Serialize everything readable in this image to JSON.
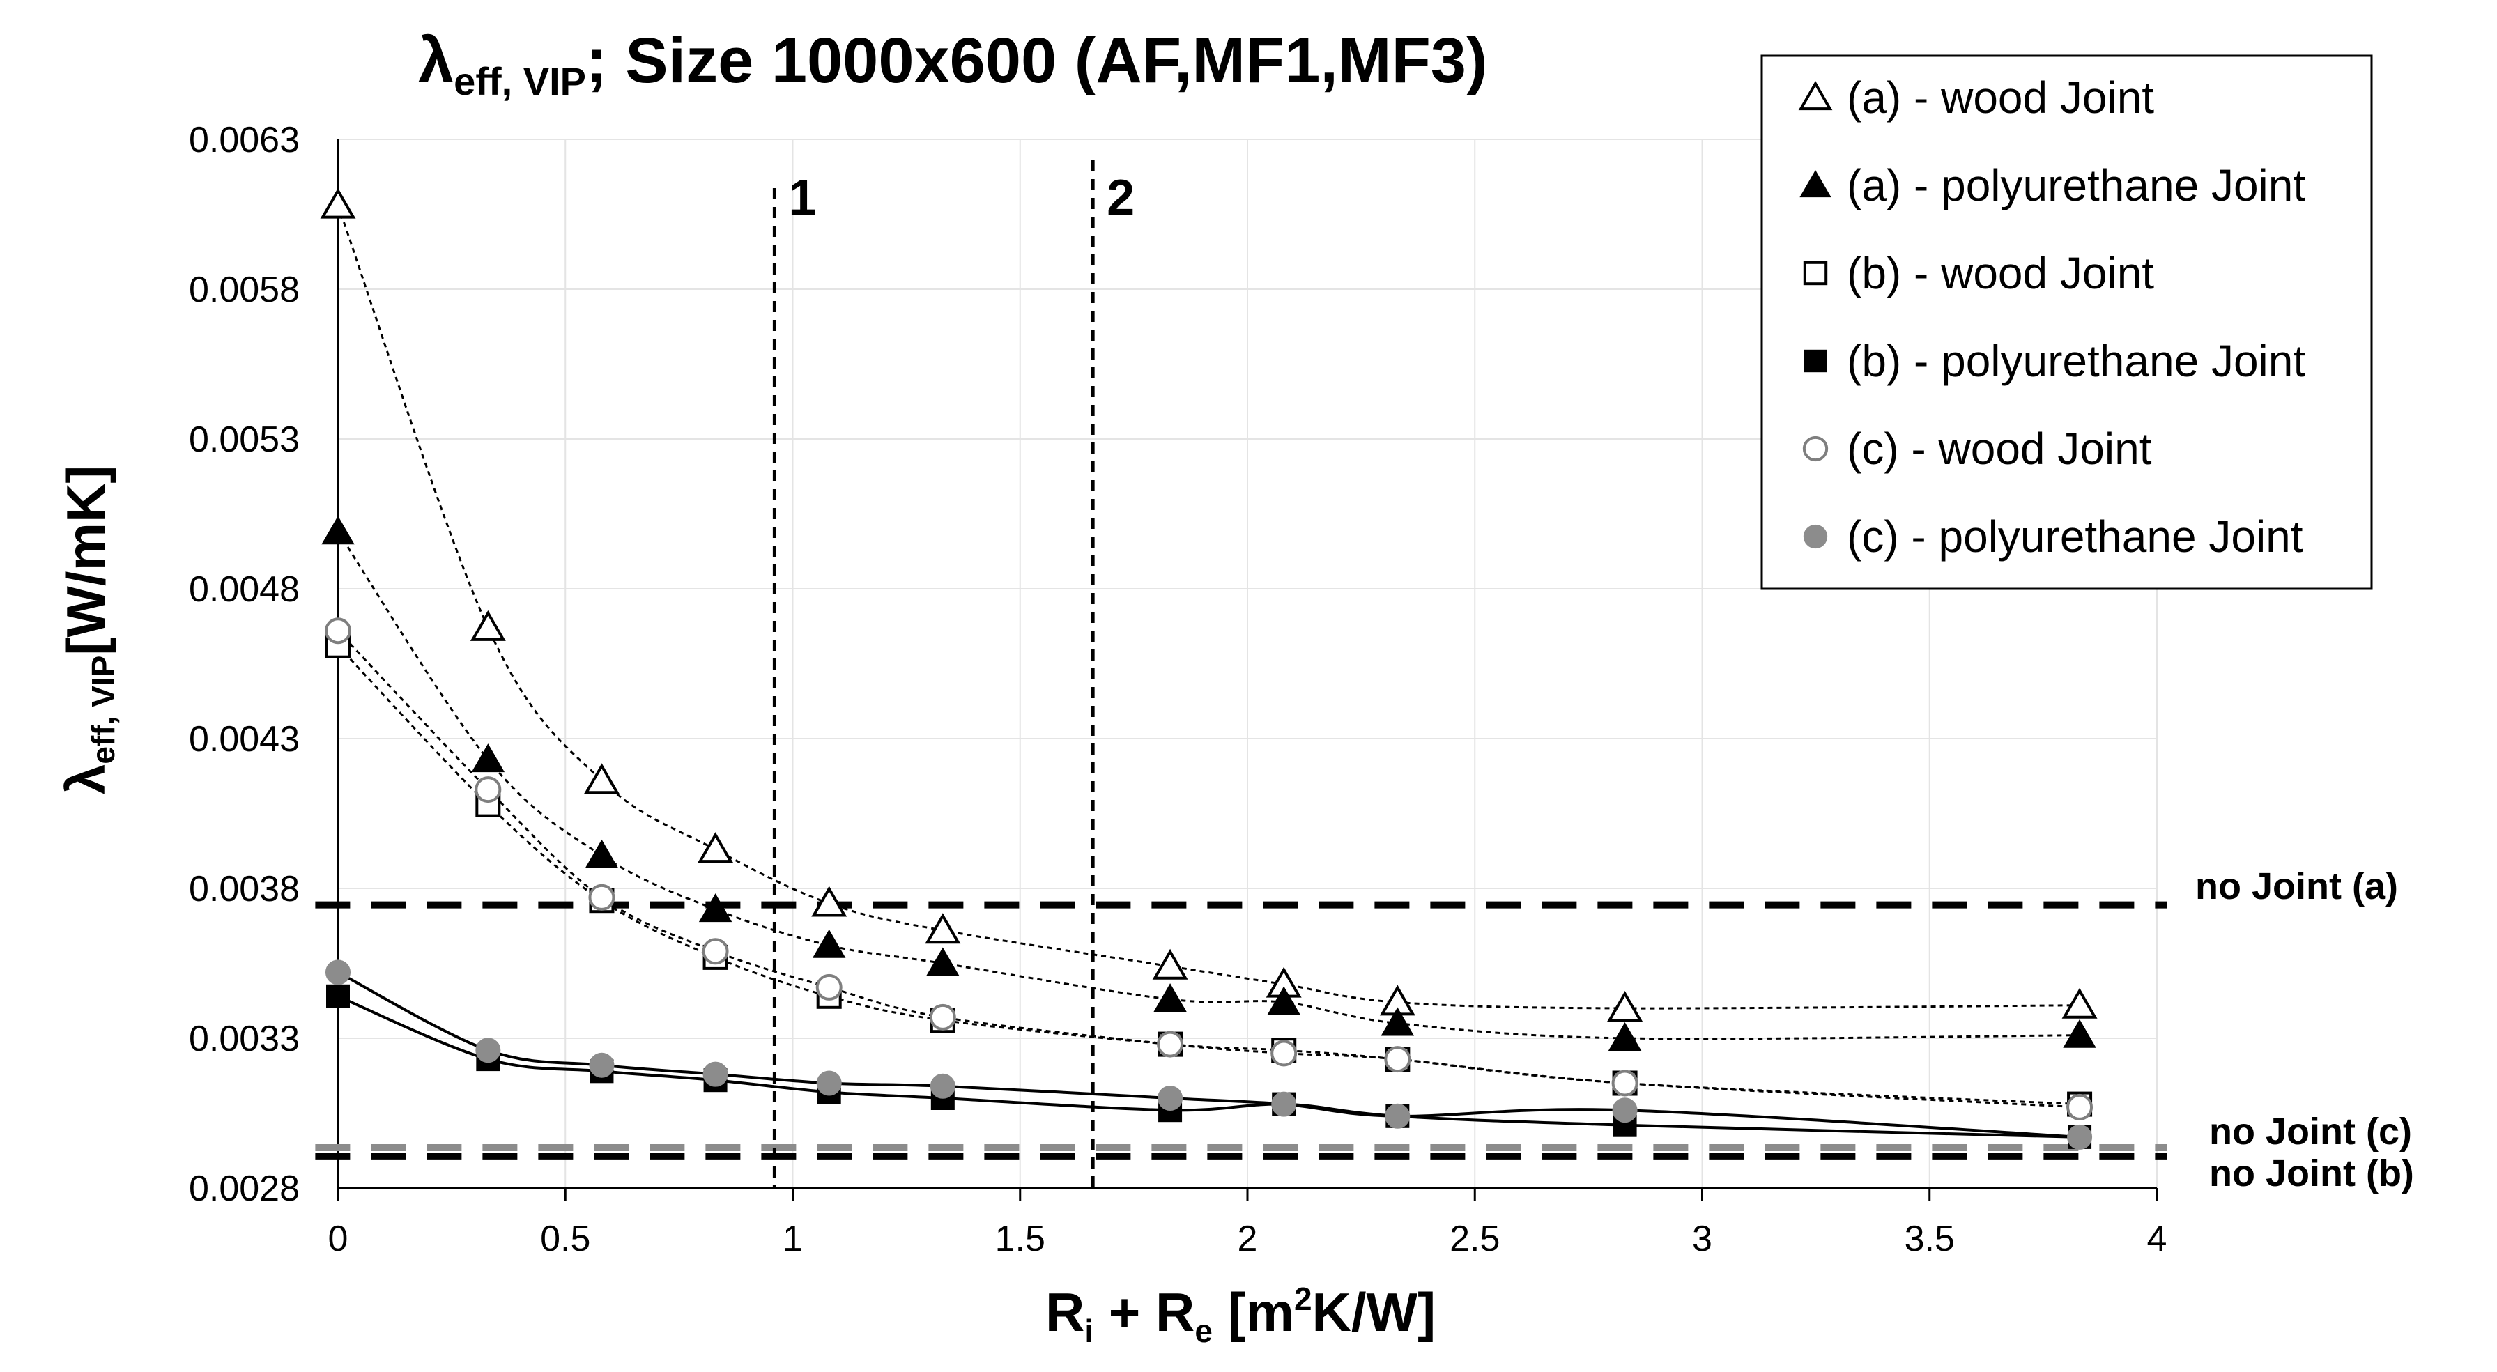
{
  "chart_data": {
    "type": "scatter",
    "title": {
      "main": "λ",
      "sub": "eff, VIP",
      "rest": "; Size 1000x600 (AF,MF1,MF3)"
    },
    "ylabel": {
      "main": "λ",
      "sub": "eff, VIP",
      "rest": "[W/mK]"
    },
    "xlabel": {
      "pre": "R",
      "sub1": "i",
      "mid": " + R",
      "sub2": "e",
      "post1": " [m",
      "sup": "2",
      "post2": "K/W]"
    },
    "xlim": [
      0,
      4
    ],
    "ylim": [
      0.0028,
      0.0063
    ],
    "x_ticks": [
      "0",
      "0.5",
      "1",
      "1.5",
      "2",
      "2.5",
      "3",
      "3.5",
      "4"
    ],
    "y_ticks": [
      "0.0028",
      "0.0033",
      "0.0038",
      "0.0043",
      "0.0048",
      "0.0053",
      "0.0058",
      "0.0063"
    ],
    "grid": true,
    "legend_position": "top-right",
    "x": [
      0,
      0.33,
      0.58,
      0.83,
      1.08,
      1.33,
      1.83,
      2.08,
      2.33,
      2.83,
      3.83
    ],
    "series": [
      {
        "name": "(a) - wood Joint",
        "marker": "triangle-open",
        "color": "#000000",
        "values": [
          0.00608,
          0.00467,
          0.00416,
          0.00393,
          0.00375,
          0.00366,
          0.00354,
          0.00348,
          0.00342,
          0.0034,
          0.00341
        ]
      },
      {
        "name": "(a) - polyurethane Joint",
        "marker": "triangle-filled",
        "color": "#000000",
        "values": [
          0.00499,
          0.00423,
          0.00391,
          0.00373,
          0.00361,
          0.00355,
          0.00343,
          0.00342,
          0.00335,
          0.0033,
          0.00331
        ]
      },
      {
        "name": "(b) - wood Joint",
        "marker": "square-open",
        "color": "#000000",
        "values": [
          0.00461,
          0.00408,
          0.00376,
          0.00357,
          0.00344,
          0.00336,
          0.00328,
          0.00326,
          0.00323,
          0.00315,
          0.00308
        ]
      },
      {
        "name": "(b) - polyurethane Joint",
        "marker": "square-filled",
        "color": "#000000",
        "values": [
          0.00344,
          0.00323,
          0.00319,
          0.00316,
          0.00312,
          0.0031,
          0.00306,
          0.00308,
          0.00304,
          0.00301,
          0.00297
        ]
      },
      {
        "name": "(c) - wood Joint",
        "marker": "circle-open",
        "color": "#7f7f7f",
        "values": [
          0.00466,
          0.00413,
          0.00377,
          0.00359,
          0.00347,
          0.00337,
          0.00328,
          0.00325,
          0.00323,
          0.00315,
          0.00307
        ]
      },
      {
        "name": "(c) - polyurethane Joint",
        "marker": "circle-filled",
        "color": "#7f7f7f",
        "values": [
          0.00352,
          0.00326,
          0.00321,
          0.00318,
          0.00315,
          0.00314,
          0.0031,
          0.00308,
          0.00304,
          0.00306,
          0.00297
        ]
      }
    ],
    "reference_lines": [
      {
        "label": "no Joint (a)",
        "value": 0.003745,
        "color": "#000000"
      },
      {
        "label": "no Joint (c)",
        "value": 0.002935,
        "color": "#8c8c8c"
      },
      {
        "label": "no Joint (b)",
        "value": 0.002905,
        "color": "#000000"
      }
    ],
    "vertical_lines": [
      {
        "label": "1",
        "value": 0.96
      },
      {
        "label": "2",
        "value": 1.66
      }
    ]
  }
}
